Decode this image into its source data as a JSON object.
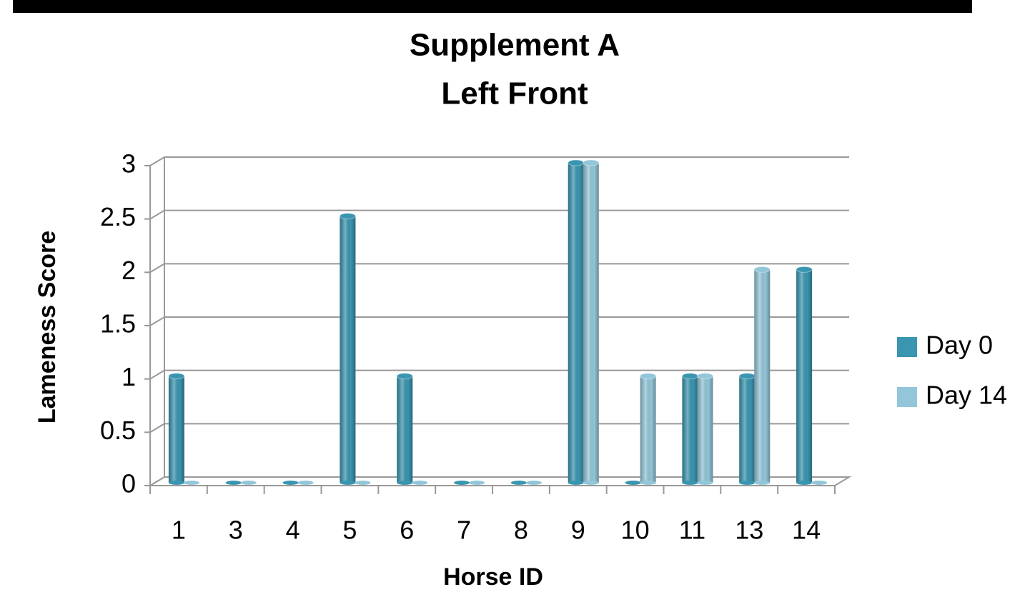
{
  "chart_data": {
    "type": "bar3d",
    "title": [
      "Supplement A",
      "Left Front"
    ],
    "xlabel": "Horse ID",
    "ylabel": "Lameness Score",
    "categories": [
      "1",
      "3",
      "4",
      "5",
      "6",
      "7",
      "8",
      "9",
      "10",
      "11",
      "13",
      "14"
    ],
    "series": [
      {
        "name": "Day 0",
        "color": "#3a95b0",
        "values": [
          1,
          0,
          0,
          2.5,
          1,
          0,
          0,
          3,
          0,
          1,
          1,
          2
        ]
      },
      {
        "name": "Day 14",
        "color": "#93c6d9",
        "values": [
          0,
          0,
          0,
          0,
          0,
          0,
          0,
          3,
          1,
          1,
          2,
          0
        ]
      }
    ],
    "ylim": [
      0,
      3
    ],
    "yticks": [
      0,
      0.5,
      1,
      1.5,
      2,
      2.5,
      3
    ],
    "grid": true,
    "legend": "right"
  }
}
